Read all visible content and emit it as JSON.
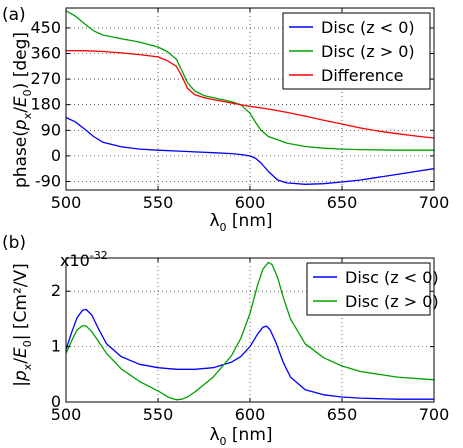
{
  "figure": {
    "panels": [
      "(a)",
      "(b)"
    ]
  },
  "colors": {
    "blue": "#0000ff",
    "green": "#00a000",
    "red": "#ff0000"
  },
  "chart_data": [
    {
      "type": "line",
      "panel_label": "(a)",
      "ylabel": "phase(p_x/E_0) [deg]",
      "xlabel": "λ_0 [nm]",
      "xlim": [
        500,
        700
      ],
      "ylim": [
        -120,
        520
      ],
      "xticks": [
        500,
        550,
        600,
        650,
        700
      ],
      "yticks": [
        -90,
        0,
        90,
        180,
        270,
        360,
        450
      ],
      "grid": true,
      "grid_style": "dotted",
      "legend_position": "top-right",
      "series": [
        {
          "name": "Disc (z < 0)",
          "color": "blue",
          "x": [
            500,
            505,
            510,
            515,
            520,
            530,
            540,
            550,
            560,
            570,
            580,
            590,
            595,
            600,
            603,
            606,
            610,
            615,
            620,
            630,
            640,
            650,
            660,
            670,
            680,
            690,
            700
          ],
          "y": [
            135,
            120,
            95,
            68,
            48,
            32,
            24,
            20,
            17,
            14,
            11,
            8,
            5,
            0,
            -8,
            -25,
            -55,
            -85,
            -95,
            -100,
            -98,
            -92,
            -85,
            -75,
            -65,
            -55,
            -45
          ]
        },
        {
          "name": "Disc (z > 0)",
          "color": "green",
          "x": [
            500,
            505,
            510,
            515,
            520,
            530,
            540,
            550,
            555,
            560,
            563,
            566,
            570,
            575,
            580,
            590,
            595,
            600,
            603,
            606,
            610,
            620,
            630,
            640,
            650,
            660,
            680,
            700
          ],
          "y": [
            510,
            492,
            465,
            440,
            425,
            412,
            400,
            383,
            367,
            340,
            300,
            258,
            228,
            212,
            205,
            190,
            180,
            150,
            118,
            90,
            68,
            45,
            33,
            27,
            24,
            22,
            20,
            20
          ]
        },
        {
          "name": "Difference",
          "color": "red",
          "x": [
            500,
            510,
            520,
            530,
            540,
            550,
            555,
            560,
            563,
            566,
            570,
            575,
            580,
            590,
            600,
            610,
            620,
            630,
            640,
            650,
            660,
            670,
            680,
            690,
            700
          ],
          "y": [
            370,
            370,
            367,
            362,
            356,
            348,
            335,
            315,
            280,
            238,
            215,
            205,
            198,
            186,
            174,
            165,
            153,
            140,
            125,
            112,
            98,
            87,
            78,
            70,
            63
          ]
        }
      ]
    },
    {
      "type": "line",
      "panel_label": "(b)",
      "ylabel": "|p_x/E_0| [Cm²/V]",
      "xlabel": "λ_0 [nm]",
      "scale_label": "x10^-32",
      "xlim": [
        500,
        700
      ],
      "ylim": [
        0,
        2.6
      ],
      "xticks": [
        500,
        550,
        600,
        650,
        700
      ],
      "yticks": [
        0,
        1,
        2
      ],
      "grid": true,
      "grid_style": "dotted",
      "legend_position": "top-right",
      "series": [
        {
          "name": "Disc (z < 0)",
          "color": "blue",
          "x": [
            500,
            503,
            506,
            509,
            511,
            514,
            518,
            522,
            530,
            540,
            550,
            560,
            570,
            580,
            590,
            595,
            600,
            604,
            607,
            609,
            611,
            614,
            618,
            622,
            630,
            640,
            650,
            660,
            670,
            680,
            690,
            700
          ],
          "y": [
            0.95,
            1.25,
            1.52,
            1.66,
            1.67,
            1.57,
            1.3,
            1.05,
            0.82,
            0.68,
            0.62,
            0.59,
            0.59,
            0.62,
            0.72,
            0.82,
            1.0,
            1.22,
            1.35,
            1.37,
            1.3,
            1.08,
            0.72,
            0.45,
            0.22,
            0.13,
            0.09,
            0.07,
            0.06,
            0.05,
            0.05,
            0.05
          ]
        },
        {
          "name": "Disc (z > 0)",
          "color": "green",
          "x": [
            500,
            503,
            506,
            509,
            511,
            514,
            518,
            522,
            530,
            540,
            550,
            556,
            560,
            563,
            566,
            570,
            580,
            590,
            595,
            600,
            604,
            607,
            610,
            612,
            615,
            618,
            622,
            630,
            640,
            650,
            660,
            680,
            700
          ],
          "y": [
            0.88,
            1.1,
            1.3,
            1.38,
            1.37,
            1.27,
            1.08,
            0.88,
            0.6,
            0.37,
            0.2,
            0.08,
            0.04,
            0.05,
            0.09,
            0.18,
            0.45,
            0.84,
            1.15,
            1.6,
            2.1,
            2.4,
            2.52,
            2.48,
            2.25,
            1.9,
            1.5,
            1.05,
            0.8,
            0.65,
            0.55,
            0.45,
            0.4
          ]
        }
      ]
    }
  ]
}
